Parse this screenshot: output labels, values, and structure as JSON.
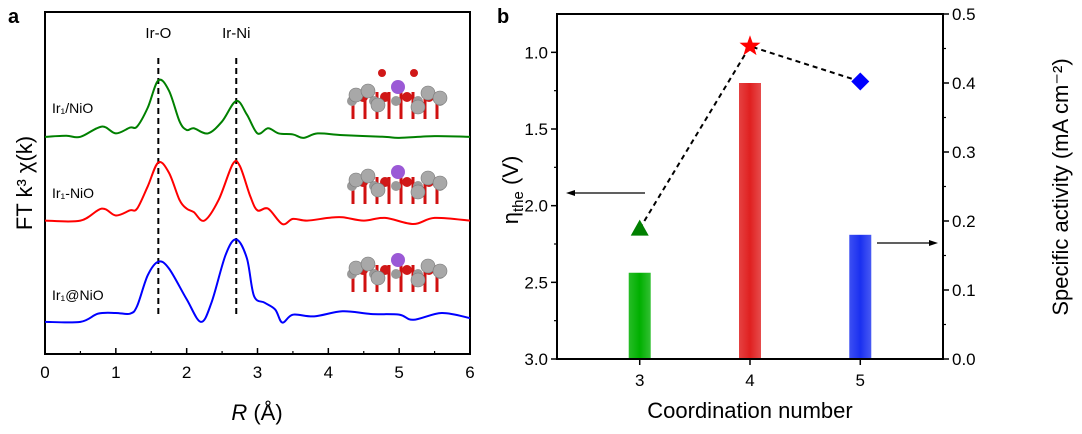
{
  "chart_data": [
    {
      "type": "line",
      "panel_label": "a",
      "xlabel_symbol": "R",
      "xlabel_unit": "(Å)",
      "ylabel": "FT k³ χ(k)",
      "xlim": [
        0,
        6
      ],
      "xticks": [
        "0",
        "1",
        "2",
        "3",
        "4",
        "5",
        "6"
      ],
      "y_ticks_shown": false,
      "grid": false,
      "reference_lines": [
        {
          "label": "Ir-O",
          "x": 1.6
        },
        {
          "label": "Ir-Ni",
          "x": 2.7
        }
      ],
      "series": [
        {
          "name": "Ir₁/NiO",
          "color": "#008000",
          "x": [
            0,
            0.3,
            0.5,
            0.8,
            1.0,
            1.2,
            1.3,
            1.45,
            1.6,
            1.75,
            1.9,
            2.0,
            2.1,
            2.3,
            2.5,
            2.7,
            2.85,
            3.0,
            3.15,
            3.3,
            3.5,
            3.65,
            3.85,
            4.2,
            4.8,
            5.0,
            5.5,
            6.0
          ],
          "y": [
            0.635,
            0.638,
            0.635,
            0.665,
            0.645,
            0.662,
            0.665,
            0.72,
            0.8,
            0.77,
            0.68,
            0.655,
            0.66,
            0.645,
            0.68,
            0.74,
            0.7,
            0.645,
            0.66,
            0.645,
            0.642,
            0.632,
            0.645,
            0.64,
            0.635,
            0.632,
            0.637,
            0.635
          ]
        },
        {
          "name": "Ir₁-NiO",
          "color": "#ff0000",
          "x": [
            0,
            0.5,
            0.8,
            1.0,
            1.2,
            1.3,
            1.45,
            1.6,
            1.75,
            1.9,
            2.0,
            2.1,
            2.25,
            2.45,
            2.65,
            2.75,
            2.9,
            3.0,
            3.15,
            3.35,
            3.5,
            3.7,
            4.0,
            4.2,
            4.5,
            4.8,
            5.2,
            5.5,
            6.0
          ],
          "y": [
            0.39,
            0.39,
            0.425,
            0.405,
            0.42,
            0.425,
            0.49,
            0.56,
            0.53,
            0.45,
            0.425,
            0.415,
            0.39,
            0.45,
            0.555,
            0.55,
            0.46,
            0.42,
            0.425,
            0.38,
            0.395,
            0.39,
            0.398,
            0.4,
            0.39,
            0.398,
            0.38,
            0.398,
            0.39
          ]
        },
        {
          "name": "Ir₁@NiO",
          "color": "#0000ff",
          "x": [
            0,
            0.5,
            0.75,
            1.0,
            1.2,
            1.3,
            1.45,
            1.6,
            1.75,
            2.0,
            2.2,
            2.35,
            2.55,
            2.7,
            2.85,
            2.95,
            3.1,
            3.25,
            3.35,
            3.5,
            3.8,
            4.2,
            4.6,
            5.0,
            5.2,
            5.6,
            6.0
          ],
          "y": [
            0.094,
            0.094,
            0.118,
            0.12,
            0.118,
            0.14,
            0.23,
            0.27,
            0.25,
            0.16,
            0.094,
            0.15,
            0.29,
            0.335,
            0.28,
            0.17,
            0.15,
            0.13,
            0.092,
            0.115,
            0.11,
            0.125,
            0.117,
            0.115,
            0.1,
            0.12,
            0.105
          ]
        }
      ]
    },
    {
      "type": "bar+line",
      "panel_label": "b",
      "xlabel": "Coordination number",
      "categories": [
        "3",
        "4",
        "5"
      ],
      "xlim": [
        2.25,
        5.75
      ],
      "left_axis": {
        "ylabel_symbol": "η",
        "ylabel_sub": "the",
        "ylabel_unit": " (V)",
        "ylim": [
          0.75,
          3.0
        ],
        "inverted": true,
        "ticks": [
          "1.0",
          "1.5",
          "2.0",
          "2.5",
          "3.0"
        ],
        "series": {
          "style": "dashed line with markers",
          "color": "#000000",
          "values": [
            2.15,
            0.96,
            1.19
          ],
          "markers": [
            "triangle",
            "star",
            "diamond"
          ],
          "marker_colors": [
            "#008000",
            "#ff0000",
            "#0000ff"
          ]
        }
      },
      "right_axis": {
        "ylabel": "Specific activity (mA cm⁻²)",
        "ylim": [
          0,
          0.5
        ],
        "ticks": [
          "0.0",
          "0.1",
          "0.2",
          "0.3",
          "0.4",
          "0.5"
        ],
        "series": {
          "style": "bar",
          "values": [
            0.125,
            0.4,
            0.18
          ],
          "colors": [
            "#00b000",
            "#e02020",
            "#1a30f0"
          ]
        }
      },
      "grid": false
    }
  ]
}
